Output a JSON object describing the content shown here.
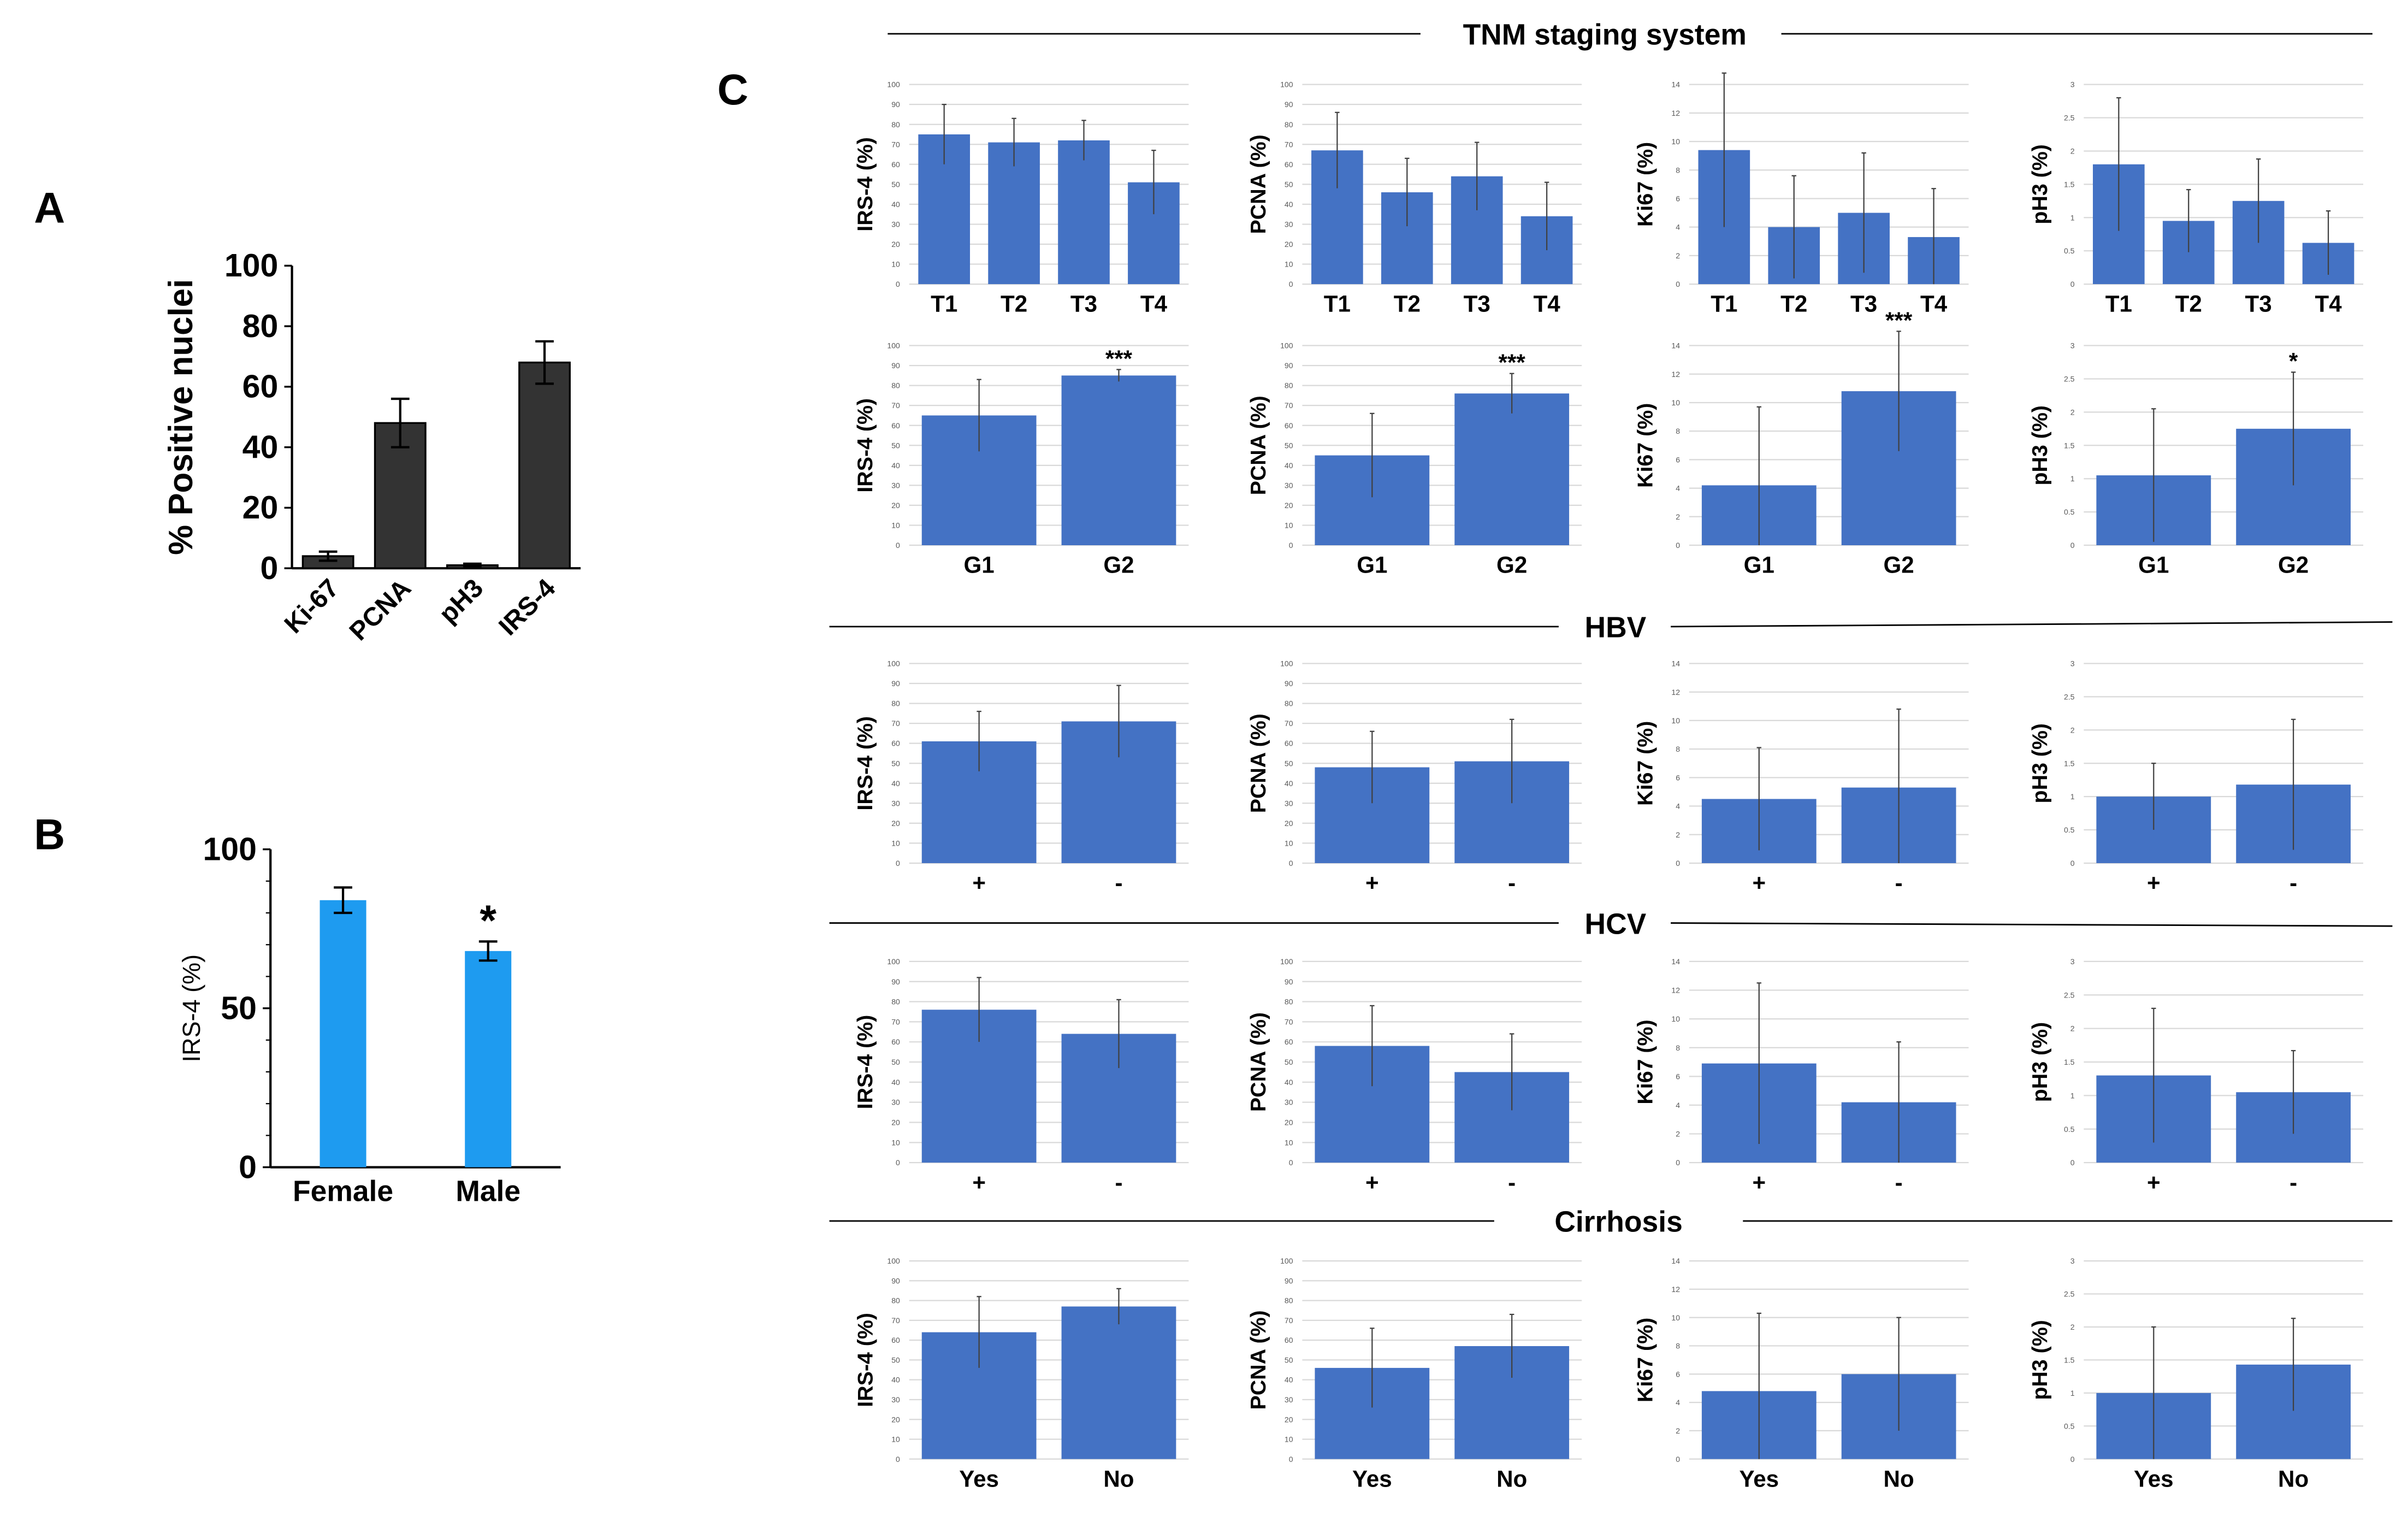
{
  "panels": {
    "A": {
      "letter": "A"
    },
    "B": {
      "letter": "B"
    },
    "C": {
      "letter": "C",
      "sections": [
        "TNM staging system",
        "HBV",
        "HCV",
        "Cirrhosis"
      ]
    }
  },
  "colors": {
    "bar_A": "#333333",
    "bar_B": "#1e9bf0",
    "bar_C": "#4472c4"
  },
  "chart_data": [
    {
      "id": "A",
      "type": "bar",
      "ylabel": "% Positive nuclei",
      "categories": [
        "Ki-67",
        "PCNA",
        "pH3",
        "IRS-4"
      ],
      "values": [
        4,
        48,
        1,
        68
      ],
      "errors": [
        1.5,
        8,
        0.5,
        7
      ],
      "ylim": [
        0,
        100
      ],
      "yticks": [
        "0",
        "20",
        "40",
        "60",
        "80",
        "100"
      ],
      "annotations": [
        "",
        "",
        "",
        ""
      ]
    },
    {
      "id": "B",
      "type": "bar",
      "ylabel": "IRS-4 (%)",
      "categories": [
        "Female",
        "Male"
      ],
      "values": [
        84,
        68
      ],
      "errors": [
        4,
        3
      ],
      "ylim": [
        0,
        100
      ],
      "yticks": [
        "0",
        "50",
        "100"
      ],
      "annotations": [
        "",
        "*"
      ]
    },
    {
      "id": "C-TNM-T-IRS4",
      "type": "bar",
      "ylabel": "IRS-4 (%)",
      "categories": [
        "T1",
        "T2",
        "T3",
        "T4"
      ],
      "values": [
        75,
        71,
        72,
        51
      ],
      "errors": [
        15,
        12,
        10,
        16
      ],
      "ylim": [
        0,
        100
      ],
      "yticks": [
        "0",
        "10",
        "20",
        "30",
        "40",
        "50",
        "60",
        "70",
        "80",
        "90",
        "100"
      ],
      "annotations": [
        "",
        "",
        "",
        ""
      ]
    },
    {
      "id": "C-TNM-T-PCNA",
      "type": "bar",
      "ylabel": "PCNA (%)",
      "categories": [
        "T1",
        "T2",
        "T3",
        "T4"
      ],
      "values": [
        67,
        46,
        54,
        34
      ],
      "errors": [
        19,
        17,
        17,
        17
      ],
      "ylim": [
        0,
        100
      ],
      "yticks": [
        "0",
        "10",
        "20",
        "30",
        "40",
        "50",
        "60",
        "70",
        "80",
        "90",
        "100"
      ],
      "annotations": [
        "",
        "",
        "",
        ""
      ]
    },
    {
      "id": "C-TNM-T-Ki67",
      "type": "bar",
      "ylabel": "Ki67 (%)",
      "categories": [
        "T1",
        "T2",
        "T3",
        "T4"
      ],
      "values": [
        9.4,
        4,
        5,
        3.3
      ],
      "errors": [
        5.4,
        3.6,
        4.2,
        3.4
      ],
      "ylim": [
        0,
        14
      ],
      "yticks": [
        "0",
        "2",
        "4",
        "6",
        "8",
        "10",
        "12",
        "14"
      ],
      "annotations": [
        "",
        "",
        "",
        ""
      ]
    },
    {
      "id": "C-TNM-T-pH3",
      "type": "bar",
      "ylabel": "pH3 (%)",
      "categories": [
        "T1",
        "T2",
        "T3",
        "T4"
      ],
      "values": [
        1.8,
        0.95,
        1.25,
        0.62
      ],
      "errors": [
        1.0,
        0.47,
        0.63,
        0.48
      ],
      "ylim": [
        0,
        3
      ],
      "yticks": [
        "0",
        "0.5",
        "1",
        "1.5",
        "2",
        "2.5",
        "3"
      ],
      "annotations": [
        "",
        "",
        "",
        ""
      ]
    },
    {
      "id": "C-TNM-G-IRS4",
      "type": "bar",
      "ylabel": "IRS-4 (%)",
      "categories": [
        "G1",
        "G2"
      ],
      "values": [
        65,
        85
      ],
      "errors": [
        18,
        3
      ],
      "ylim": [
        0,
        100
      ],
      "yticks": [
        "0",
        "10",
        "20",
        "30",
        "40",
        "50",
        "60",
        "70",
        "80",
        "90",
        "100"
      ],
      "annotations": [
        "",
        "***"
      ]
    },
    {
      "id": "C-TNM-G-PCNA",
      "type": "bar",
      "ylabel": "PCNA (%)",
      "categories": [
        "G1",
        "G2"
      ],
      "values": [
        45,
        76
      ],
      "errors": [
        21,
        10
      ],
      "ylim": [
        0,
        100
      ],
      "yticks": [
        "0",
        "10",
        "20",
        "30",
        "40",
        "50",
        "60",
        "70",
        "80",
        "90",
        "100"
      ],
      "annotations": [
        "",
        "***"
      ]
    },
    {
      "id": "C-TNM-G-Ki67",
      "type": "bar",
      "ylabel": "Ki67 (%)",
      "categories": [
        "G1",
        "G2"
      ],
      "values": [
        4.2,
        10.8
      ],
      "errors": [
        5.5,
        4.2
      ],
      "ylim": [
        0,
        14
      ],
      "yticks": [
        "0",
        "2",
        "4",
        "6",
        "8",
        "10",
        "12",
        "14"
      ],
      "annotations": [
        "",
        "***"
      ]
    },
    {
      "id": "C-TNM-G-pH3",
      "type": "bar",
      "ylabel": "pH3 (%)",
      "categories": [
        "G1",
        "G2"
      ],
      "values": [
        1.05,
        1.75
      ],
      "errors": [
        1.0,
        0.85
      ],
      "ylim": [
        0,
        3
      ],
      "yticks": [
        "0",
        "0.5",
        "1",
        "1.5",
        "2",
        "2.5",
        "3"
      ],
      "annotations": [
        "",
        "*"
      ]
    },
    {
      "id": "C-HBV-IRS4",
      "type": "bar",
      "ylabel": "IRS-4 (%)",
      "categories": [
        "+",
        "-"
      ],
      "values": [
        61,
        71
      ],
      "errors": [
        15,
        18
      ],
      "ylim": [
        0,
        100
      ],
      "yticks": [
        "0",
        "10",
        "20",
        "30",
        "40",
        "50",
        "60",
        "70",
        "80",
        "90",
        "100"
      ],
      "annotations": [
        "",
        ""
      ]
    },
    {
      "id": "C-HBV-PCNA",
      "type": "bar",
      "ylabel": "PCNA (%)",
      "categories": [
        "+",
        "-"
      ],
      "values": [
        48,
        51
      ],
      "errors": [
        18,
        21
      ],
      "ylim": [
        0,
        100
      ],
      "yticks": [
        "0",
        "10",
        "20",
        "30",
        "40",
        "50",
        "60",
        "70",
        "80",
        "90",
        "100"
      ],
      "annotations": [
        "",
        ""
      ]
    },
    {
      "id": "C-HBV-Ki67",
      "type": "bar",
      "ylabel": "Ki67 (%)",
      "categories": [
        "+",
        "-"
      ],
      "values": [
        4.5,
        5.3
      ],
      "errors": [
        3.6,
        5.5
      ],
      "ylim": [
        0,
        14
      ],
      "yticks": [
        "0",
        "2",
        "4",
        "6",
        "8",
        "10",
        "12",
        "14"
      ],
      "annotations": [
        "",
        ""
      ]
    },
    {
      "id": "C-HBV-pH3",
      "type": "bar",
      "ylabel": "pH3 (%)",
      "categories": [
        "+",
        "-"
      ],
      "values": [
        1.0,
        1.18
      ],
      "errors": [
        0.5,
        0.98
      ],
      "ylim": [
        0,
        3
      ],
      "yticks": [
        "0",
        "0.5",
        "1",
        "1.5",
        "2",
        "2.5",
        "3"
      ],
      "annotations": [
        "",
        ""
      ]
    },
    {
      "id": "C-HCV-IRS4",
      "type": "bar",
      "ylabel": "IRS-4 (%)",
      "categories": [
        "+",
        "-"
      ],
      "values": [
        76,
        64
      ],
      "errors": [
        16,
        17
      ],
      "ylim": [
        0,
        100
      ],
      "yticks": [
        "0",
        "10",
        "20",
        "30",
        "40",
        "50",
        "60",
        "70",
        "80",
        "90",
        "100"
      ],
      "annotations": [
        "",
        ""
      ]
    },
    {
      "id": "C-HCV-PCNA",
      "type": "bar",
      "ylabel": "PCNA (%)",
      "categories": [
        "+",
        "-"
      ],
      "values": [
        58,
        45
      ],
      "errors": [
        20,
        19
      ],
      "ylim": [
        0,
        100
      ],
      "yticks": [
        "0",
        "10",
        "20",
        "30",
        "40",
        "50",
        "60",
        "70",
        "80",
        "90",
        "100"
      ],
      "annotations": [
        "",
        ""
      ]
    },
    {
      "id": "C-HCV-Ki67",
      "type": "bar",
      "ylabel": "Ki67 (%)",
      "categories": [
        "+",
        "-"
      ],
      "values": [
        6.9,
        4.2
      ],
      "errors": [
        5.6,
        4.2
      ],
      "ylim": [
        0,
        14
      ],
      "yticks": [
        "0",
        "2",
        "4",
        "6",
        "8",
        "10",
        "12",
        "14"
      ],
      "annotations": [
        "",
        ""
      ]
    },
    {
      "id": "C-HCV-pH3",
      "type": "bar",
      "ylabel": "pH3 (%)",
      "categories": [
        "+",
        "-"
      ],
      "values": [
        1.3,
        1.05
      ],
      "errors": [
        1.0,
        0.62
      ],
      "ylim": [
        0,
        3
      ],
      "yticks": [
        "0",
        "0.5",
        "1",
        "1.5",
        "2",
        "2.5",
        "3"
      ],
      "annotations": [
        "",
        ""
      ]
    },
    {
      "id": "C-Cirrhosis-IRS4",
      "type": "bar",
      "ylabel": "IRS-4 (%)",
      "categories": [
        "Yes",
        "No"
      ],
      "values": [
        64,
        77
      ],
      "errors": [
        18,
        9
      ],
      "ylim": [
        0,
        100
      ],
      "yticks": [
        "0",
        "10",
        "20",
        "30",
        "40",
        "50",
        "60",
        "70",
        "80",
        "90",
        "100"
      ],
      "annotations": [
        "",
        ""
      ]
    },
    {
      "id": "C-Cirrhosis-PCNA",
      "type": "bar",
      "ylabel": "PCNA (%)",
      "categories": [
        "Yes",
        "No"
      ],
      "values": [
        46,
        57
      ],
      "errors": [
        20,
        16
      ],
      "ylim": [
        0,
        100
      ],
      "yticks": [
        "0",
        "10",
        "20",
        "30",
        "40",
        "50",
        "60",
        "70",
        "80",
        "90",
        "100"
      ],
      "annotations": [
        "",
        ""
      ]
    },
    {
      "id": "C-Cirrhosis-Ki67",
      "type": "bar",
      "ylabel": "Ki67 (%)",
      "categories": [
        "Yes",
        "No"
      ],
      "values": [
        4.8,
        6
      ],
      "errors": [
        5.5,
        4
      ],
      "ylim": [
        0,
        14
      ],
      "yticks": [
        "0",
        "2",
        "4",
        "6",
        "8",
        "10",
        "12",
        "14"
      ],
      "annotations": [
        "",
        ""
      ]
    },
    {
      "id": "C-Cirrhosis-pH3",
      "type": "bar",
      "ylabel": "pH3 (%)",
      "categories": [
        "Yes",
        "No"
      ],
      "values": [
        1.0,
        1.43
      ],
      "errors": [
        1.0,
        0.7
      ],
      "ylim": [
        0,
        3
      ],
      "yticks": [
        "0",
        "0.5",
        "1",
        "1.5",
        "2",
        "2.5",
        "3"
      ],
      "annotations": [
        "",
        ""
      ]
    }
  ]
}
